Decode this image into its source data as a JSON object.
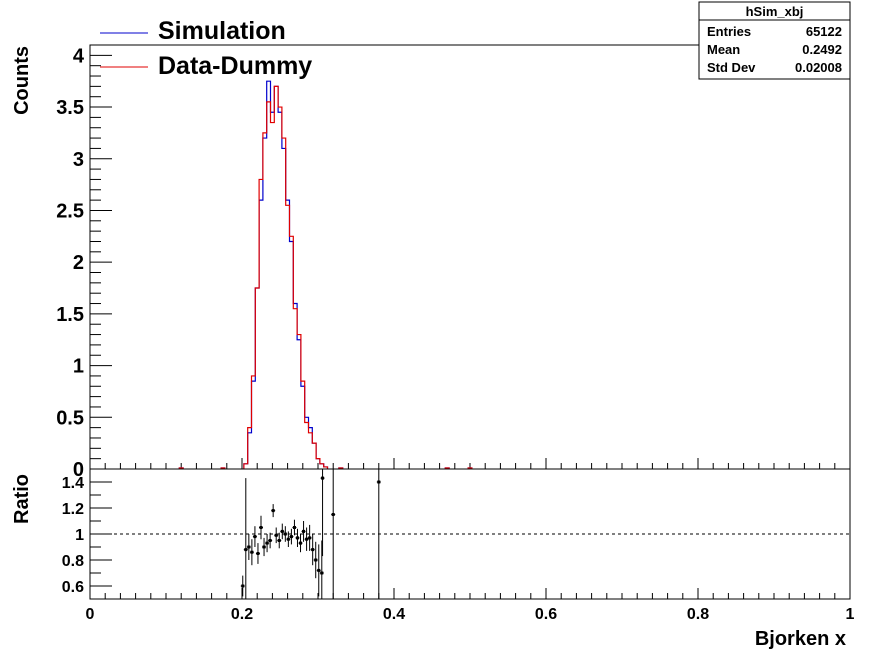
{
  "stats_box": {
    "title": "hSim_xbj",
    "rows": [
      {
        "label": "Entries",
        "value": "65122"
      },
      {
        "label": "Mean",
        "value": "0.2492"
      },
      {
        "label": "Std Dev",
        "value": "0.02008"
      }
    ]
  },
  "legend": {
    "entries": [
      {
        "label": "Simulation",
        "color": "#0000cc"
      },
      {
        "label": "Data-Dummy",
        "color": "#e00000"
      }
    ]
  },
  "chart_data": [
    {
      "type": "histogram",
      "ylabel": "Counts",
      "xlim": [
        0,
        1
      ],
      "ylim": [
        0,
        4.1
      ],
      "y_ticks": [
        "0",
        "0.5",
        "1",
        "1.5",
        "2",
        "2.5",
        "3",
        "3.5",
        "4"
      ],
      "x": [
        0.12,
        0.175,
        0.205,
        0.21,
        0.215,
        0.22,
        0.225,
        0.23,
        0.235,
        0.24,
        0.245,
        0.25,
        0.255,
        0.26,
        0.265,
        0.27,
        0.275,
        0.28,
        0.285,
        0.29,
        0.295,
        0.3,
        0.305,
        0.31,
        0.33,
        0.47,
        0.5
      ],
      "series": [
        {
          "name": "Simulation",
          "color": "#0000cc",
          "values": [
            0.01,
            0.01,
            0.05,
            0.35,
            0.85,
            1.75,
            2.6,
            3.2,
            3.75,
            3.45,
            3.7,
            3.45,
            3.1,
            2.6,
            2.2,
            1.6,
            1.25,
            0.8,
            0.5,
            0.4,
            0.25,
            0.1,
            0.05,
            0.02,
            0.01,
            0.01,
            0.01
          ]
        },
        {
          "name": "Data-Dummy",
          "color": "#e00000",
          "values": [
            0.01,
            0.01,
            0.05,
            0.4,
            0.9,
            1.75,
            2.8,
            3.25,
            3.55,
            3.35,
            3.7,
            3.5,
            3.2,
            2.55,
            2.25,
            1.55,
            1.3,
            0.85,
            0.45,
            0.35,
            0.25,
            0.1,
            0.05,
            0.02,
            0.01,
            0.01,
            0.01
          ]
        }
      ]
    },
    {
      "type": "scatter",
      "xlabel": "Bjorken x",
      "ylabel": "Ratio",
      "xlim": [
        0,
        1
      ],
      "ylim": [
        0.5,
        1.5
      ],
      "x_ticks": [
        "0",
        "0.2",
        "0.4",
        "0.6",
        "0.8",
        "1"
      ],
      "y_ticks": [
        "0.6",
        "0.8",
        "1",
        "1.2",
        "1.4"
      ],
      "reference_line": 1.0,
      "points": [
        {
          "x": 0.201,
          "y": 0.6,
          "err": 0.08
        },
        {
          "x": 0.205,
          "y": 0.88,
          "err": 0.55
        },
        {
          "x": 0.209,
          "y": 0.9,
          "err": 0.1
        },
        {
          "x": 0.213,
          "y": 0.86,
          "err": 0.1
        },
        {
          "x": 0.217,
          "y": 0.98,
          "err": 0.08
        },
        {
          "x": 0.221,
          "y": 0.85,
          "err": 0.08
        },
        {
          "x": 0.225,
          "y": 1.05,
          "err": 0.09
        },
        {
          "x": 0.229,
          "y": 0.9,
          "err": 0.07
        },
        {
          "x": 0.233,
          "y": 0.93,
          "err": 0.07
        },
        {
          "x": 0.237,
          "y": 0.95,
          "err": 0.06
        },
        {
          "x": 0.241,
          "y": 1.18,
          "err": 0.05
        },
        {
          "x": 0.245,
          "y": 0.99,
          "err": 0.06
        },
        {
          "x": 0.249,
          "y": 0.95,
          "err": 0.06
        },
        {
          "x": 0.253,
          "y": 1.02,
          "err": 0.06
        },
        {
          "x": 0.257,
          "y": 1.0,
          "err": 0.06
        },
        {
          "x": 0.261,
          "y": 0.96,
          "err": 0.06
        },
        {
          "x": 0.265,
          "y": 0.98,
          "err": 0.06
        },
        {
          "x": 0.269,
          "y": 1.05,
          "err": 0.06
        },
        {
          "x": 0.273,
          "y": 0.97,
          "err": 0.07
        },
        {
          "x": 0.277,
          "y": 0.93,
          "err": 0.07
        },
        {
          "x": 0.281,
          "y": 1.02,
          "err": 0.08
        },
        {
          "x": 0.285,
          "y": 0.96,
          "err": 0.09
        },
        {
          "x": 0.289,
          "y": 0.97,
          "err": 0.1
        },
        {
          "x": 0.293,
          "y": 0.88,
          "err": 0.12
        },
        {
          "x": 0.297,
          "y": 0.8,
          "err": 0.14
        },
        {
          "x": 0.301,
          "y": 0.72,
          "err": 0.2
        },
        {
          "x": 0.305,
          "y": 0.7,
          "err": 0.25
        },
        {
          "x": 0.306,
          "y": 1.43,
          "err": 0.6
        },
        {
          "x": 0.32,
          "y": 1.15,
          "err": 0.8
        },
        {
          "x": 0.38,
          "y": 1.4,
          "err": 0.9
        }
      ]
    }
  ]
}
